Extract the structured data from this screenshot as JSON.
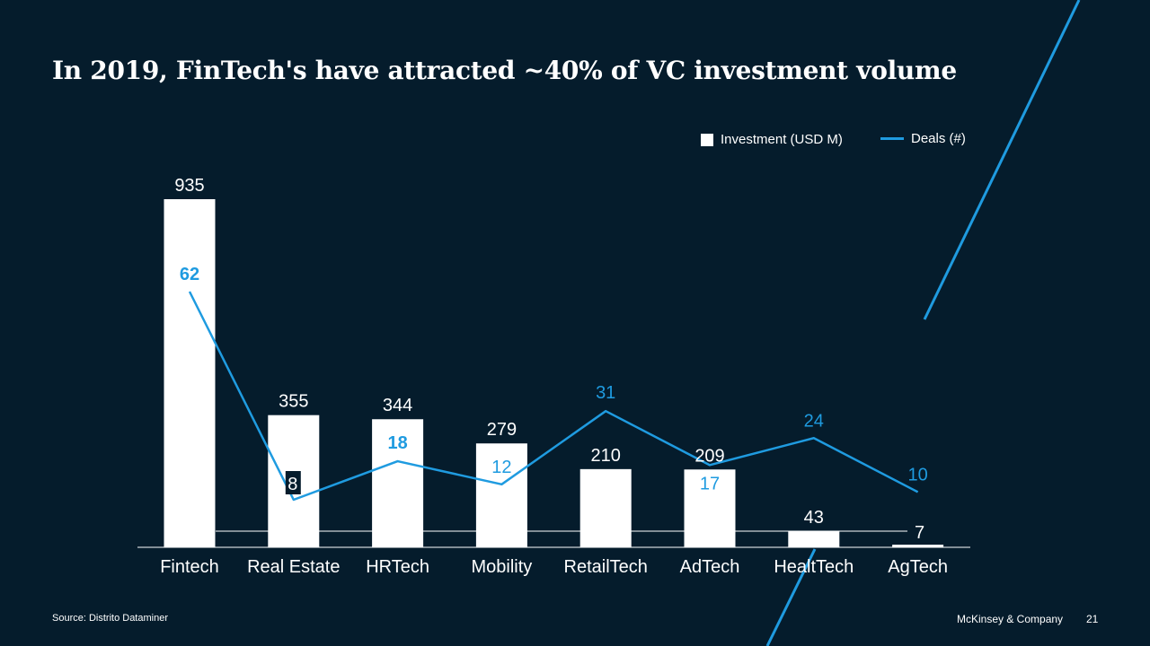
{
  "slide": {
    "title": "In 2019, FinTech's have attracted ~40% of VC investment volume",
    "source": "Source: Distrito Dataminer",
    "brand": "McKinsey & Company",
    "page_number": "21"
  },
  "colors": {
    "background": "#051c2c",
    "bars": "#ffffff",
    "line": "#1f9be0",
    "text": "#ffffff"
  },
  "chart_data": {
    "type": "bar",
    "categories": [
      "Fintech",
      "Real Estate",
      "HRTech",
      "Mobility",
      "RetailTech",
      "AdTech",
      "HealtTech",
      "AgTech"
    ],
    "series": [
      {
        "name": "Investment (USD M)",
        "type": "bar",
        "values": [
          935,
          355,
          344,
          279,
          210,
          209,
          43,
          7
        ]
      },
      {
        "name": "Deals (#)",
        "type": "line",
        "values": [
          62,
          8,
          18,
          12,
          31,
          17,
          24,
          10
        ]
      }
    ],
    "legend": {
      "position": "top-right"
    },
    "grid": false
  }
}
